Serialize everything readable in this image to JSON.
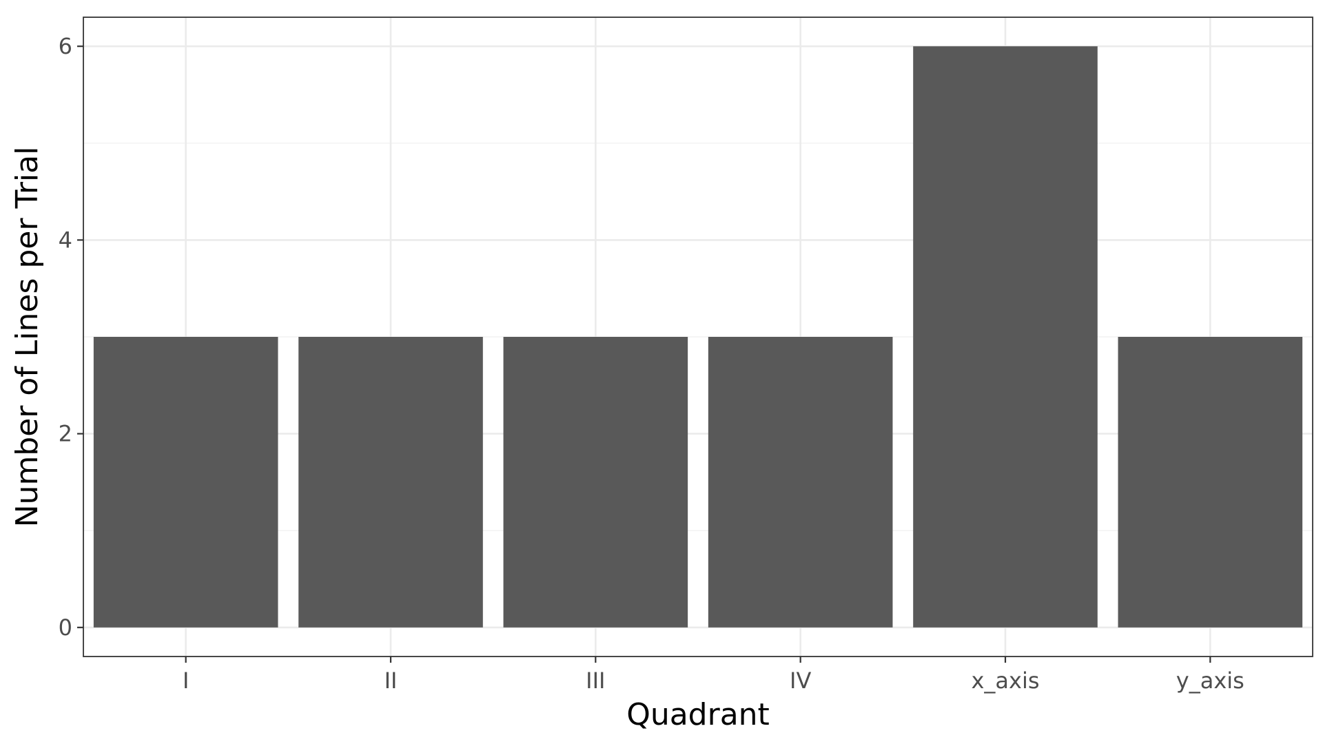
{
  "chart_data": {
    "type": "bar",
    "categories": [
      "I",
      "II",
      "III",
      "IV",
      "x_axis",
      "y_axis"
    ],
    "values": [
      3,
      3,
      3,
      3,
      6,
      3
    ],
    "xlabel": "Quadrant",
    "ylabel": "Number of Lines per Trial",
    "ylim": [
      -0.3,
      6.3
    ],
    "y_ticks": [
      0,
      2,
      4,
      6
    ],
    "y_minor_ticks": [
      1,
      3,
      5
    ],
    "grid": true,
    "legend": "none",
    "bar_color": "#595959"
  }
}
